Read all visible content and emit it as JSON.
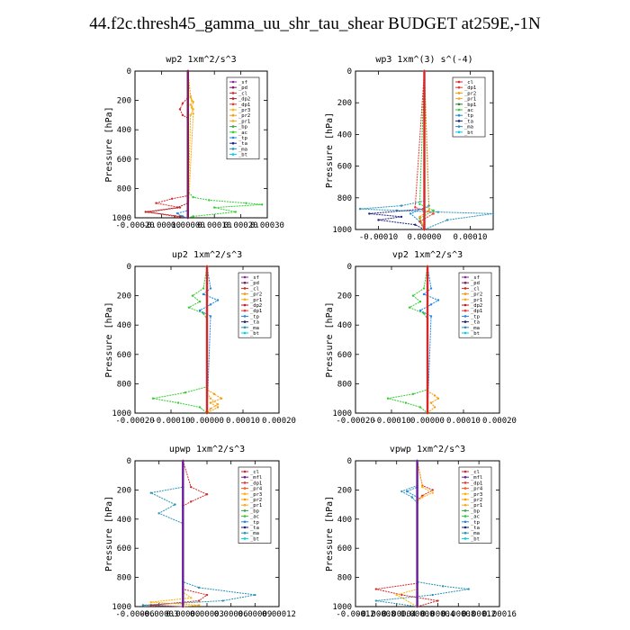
{
  "title": "44.f2c.thresh45_gamma_uu_shr_tau_shear  BUDGET at259E,-1N",
  "colors": {
    "sf": "#8e24aa",
    "pd": "#7b1f5e",
    "cl": "#d62728",
    "dp2": "#b22222",
    "dp1": "#e53935",
    "pr2": "#ff9800",
    "pr3": "#ffb300",
    "pr1": "#f9a825",
    "bp": "#43a047",
    "bp1": "#2e7d32",
    "ac": "#33cc33",
    "tp": "#1e88e5",
    "ta": "#1a237e",
    "ma": "#2a93b8",
    "bt": "#00cfe8",
    "mfl": "#6a1b9a",
    "pr4": "#ff5722"
  },
  "chart_data": [
    {
      "type": "line",
      "title": "wp2   1xm^2/s^3",
      "ylabel": "Pressure [hPa]",
      "ylim": [
        1000,
        0
      ],
      "xlim": [
        -0.0002,
        0.0003
      ],
      "xticks": [
        "-0.00020",
        "-0.00010",
        "0.00000",
        "0.00010",
        "0.00020",
        "0.00030"
      ],
      "yticks": [
        "0",
        "200",
        "400",
        "600",
        "800",
        "1000"
      ],
      "legend": [
        "_sf",
        "_pd",
        "_cl",
        "_dp2",
        "_dp1",
        "_pr3",
        "_pr2",
        "_pr1",
        "_bp",
        "_ac",
        "_tp",
        "_ta",
        "_ma",
        "_bt"
      ],
      "legend_keys": [
        "sf",
        "pd",
        "cl",
        "dp2",
        "dp1",
        "pr3",
        "pr2",
        "pr1",
        "bp",
        "ac",
        "tp",
        "ta",
        "ma",
        "bt"
      ],
      "series": [
        {
          "name": "_ac",
          "color_key": "ac",
          "x": [
            0,
            0,
            2e-05,
            8e-05,
            0.00022,
            0.00028,
            0.0001,
            0.00018,
            2e-05,
            0
          ],
          "y": [
            0,
            820,
            860,
            880,
            900,
            910,
            930,
            960,
            990,
            1000
          ]
        },
        {
          "name": "_cl",
          "color_key": "cl",
          "x": [
            0,
            0,
            -2e-05,
            -3e-05,
            -2e-05,
            0,
            0,
            -6e-05,
            -0.00012,
            -3e-05,
            -0.00015,
            -5e-05,
            0
          ],
          "y": [
            0,
            180,
            220,
            260,
            300,
            320,
            850,
            870,
            900,
            930,
            960,
            990,
            1000
          ]
        },
        {
          "name": "_dp2",
          "color_key": "dp2",
          "x": [
            0,
            0,
            -4e-05,
            -0.00016,
            -3e-05,
            0
          ],
          "y": [
            0,
            900,
            930,
            960,
            990,
            1000
          ]
        },
        {
          "name": "_pr3",
          "color_key": "pr3",
          "x": [
            0,
            1e-05,
            1.5e-05,
            1e-05,
            2e-05,
            1e-05,
            0
          ],
          "y": [
            0,
            170,
            200,
            230,
            260,
            300,
            1000
          ]
        },
        {
          "name": "_pr1",
          "color_key": "pr1",
          "x": [
            0,
            1e-05,
            2e-05,
            1.5e-05,
            2e-05,
            0
          ],
          "y": [
            0,
            180,
            210,
            250,
            290,
            1000
          ]
        },
        {
          "name": "_tp",
          "color_key": "tp",
          "x": [
            0,
            0,
            -4e-05,
            -2e-05,
            0
          ],
          "y": [
            0,
            950,
            970,
            990,
            1000
          ]
        },
        {
          "name": "_sf",
          "color_key": "sf",
          "x": [
            0,
            0
          ],
          "y": [
            0,
            1000
          ]
        },
        {
          "name": "_pd",
          "color_key": "pd",
          "x": [
            0,
            0
          ],
          "y": [
            0,
            1000
          ]
        }
      ]
    },
    {
      "type": "line",
      "title": "wp3   1xm^(3) s^(-4)",
      "ylabel": "Pressure [hPa]",
      "ylim": [
        1000,
        0
      ],
      "xlim": [
        -0.00015,
        0.00015
      ],
      "xticks": [
        "-0.00010",
        "0.00000",
        "0.00010"
      ],
      "yticks": [
        "0",
        "200",
        "400",
        "600",
        "800",
        "1000"
      ],
      "legend": [
        "_cl",
        "_dp1",
        "_pr2",
        "_pr1",
        "_bp1",
        "_ac",
        "_tp",
        "_ta",
        "_ma",
        "_bt"
      ],
      "legend_keys": [
        "cl",
        "dp1",
        "pr2",
        "pr1",
        "bp1",
        "ac",
        "tp",
        "ta",
        "ma",
        "bt"
      ],
      "series": [
        {
          "name": "_ma",
          "color_key": "ma",
          "x": [
            0,
            0,
            -5e-05,
            -0.00014,
            -6e-05,
            3e-05,
            0.00015,
            5e-05,
            0
          ],
          "y": [
            0,
            820,
            850,
            870,
            880,
            890,
            900,
            940,
            1000
          ]
        },
        {
          "name": "_ta",
          "color_key": "ta",
          "x": [
            0,
            0,
            -0.00012,
            -5e-05,
            -0.0001,
            -2e-05,
            0
          ],
          "y": [
            0,
            870,
            900,
            920,
            940,
            970,
            1000
          ]
        },
        {
          "name": "_tp",
          "color_key": "tp",
          "x": [
            0,
            1e-05,
            -3e-05,
            -1e-05,
            0
          ],
          "y": [
            0,
            850,
            900,
            950,
            1000
          ]
        },
        {
          "name": "_ac",
          "color_key": "ac",
          "x": [
            0,
            -1e-05,
            2e-05,
            -1e-05,
            0
          ],
          "y": [
            0,
            840,
            880,
            930,
            1000
          ]
        },
        {
          "name": "_pr2",
          "color_key": "pr2",
          "x": [
            0,
            1e-05,
            -1e-05,
            0
          ],
          "y": [
            0,
            880,
            920,
            1000
          ]
        },
        {
          "name": "_dp1",
          "color_key": "dp1",
          "x": [
            0,
            -2e-05,
            2e-05,
            -1e-05,
            0
          ],
          "y": [
            0,
            860,
            900,
            950,
            1000
          ]
        },
        {
          "name": "_cl",
          "color_key": "cl",
          "x": [
            0,
            0
          ],
          "y": [
            0,
            1000
          ]
        }
      ]
    },
    {
      "type": "line",
      "title": "up2   1xm^2/s^3",
      "ylabel": "Pressure [hPa]",
      "ylim": [
        1000,
        0
      ],
      "xlim": [
        -0.0002,
        0.0002
      ],
      "xticks": [
        "-0.00020",
        "-0.00010",
        "0.00000",
        "0.00010",
        "0.00020"
      ],
      "yticks": [
        "0",
        "200",
        "400",
        "600",
        "800",
        "1000"
      ],
      "legend": [
        "_sf",
        "_pd",
        "_cl",
        "_pr2",
        "_pr1",
        "_dp2",
        "_dp1",
        "_tp",
        "_ta",
        "_ma",
        "_bt"
      ],
      "legend_keys": [
        "sf",
        "pd",
        "cl",
        "pr2",
        "pr1",
        "dp2",
        "dp1",
        "tp",
        "ta",
        "ma",
        "bt"
      ],
      "series": [
        {
          "name": "_ac",
          "color_key": "ac",
          "x": [
            0,
            -1e-05,
            -4e-05,
            -2e-05,
            -5e-05,
            -1e-05,
            0,
            0,
            -6e-05,
            -0.00015,
            -8e-05,
            -2e-05,
            0
          ],
          "y": [
            0,
            150,
            200,
            240,
            280,
            320,
            360,
            820,
            860,
            900,
            930,
            960,
            1000
          ]
        },
        {
          "name": "_tp",
          "color_key": "tp",
          "x": [
            0,
            1e-05,
            -1e-05,
            3e-05,
            1e-05,
            -2e-05,
            1e-05,
            0
          ],
          "y": [
            0,
            150,
            190,
            230,
            260,
            300,
            340,
            1000
          ]
        },
        {
          "name": "_pr2",
          "color_key": "pr2",
          "x": [
            0,
            0,
            2e-05,
            4e-05,
            1e-05,
            3e-05,
            0
          ],
          "y": [
            0,
            840,
            870,
            900,
            930,
            960,
            1000
          ]
        },
        {
          "name": "_pr1",
          "color_key": "pr1",
          "x": [
            0,
            0,
            1e-05,
            3e-05,
            1e-05,
            0
          ],
          "y": [
            0,
            860,
            900,
            940,
            970,
            1000
          ]
        },
        {
          "name": "_cl",
          "color_key": "cl",
          "x": [
            0,
            0
          ],
          "y": [
            0,
            1000
          ]
        }
      ]
    },
    {
      "type": "line",
      "title": "vp2   1xm^2/s^3",
      "ylabel": "Pressure [hPa]",
      "ylim": [
        1000,
        0
      ],
      "xlim": [
        -0.0002,
        0.0002
      ],
      "xticks": [
        "-0.00020",
        "-0.00010",
        "0.00000",
        "0.00010",
        "0.00020"
      ],
      "yticks": [
        "0",
        "200",
        "400",
        "600",
        "800",
        "1000"
      ],
      "legend": [
        "_sf",
        "_pd",
        "_cl",
        "_pr2",
        "_pr1",
        "_dp2",
        "_dp1",
        "_tp",
        "_ta",
        "_ma",
        "_bt"
      ],
      "legend_keys": [
        "sf",
        "pd",
        "cl",
        "pr2",
        "pr1",
        "dp2",
        "dp1",
        "tp",
        "ta",
        "ma",
        "bt"
      ],
      "series": [
        {
          "name": "_ac",
          "color_key": "ac",
          "x": [
            0,
            -1e-05,
            -4e-05,
            -2e-05,
            -5e-05,
            -1e-05,
            0,
            0,
            -4e-05,
            -0.00011,
            -6e-05,
            -2e-05,
            0
          ],
          "y": [
            0,
            150,
            200,
            240,
            280,
            320,
            360,
            840,
            870,
            900,
            930,
            960,
            1000
          ]
        },
        {
          "name": "_tp",
          "color_key": "tp",
          "x": [
            0,
            1e-05,
            -1e-05,
            3e-05,
            1e-05,
            -2e-05,
            1e-05,
            0
          ],
          "y": [
            0,
            150,
            190,
            230,
            260,
            300,
            340,
            1000
          ]
        },
        {
          "name": "_pr2",
          "color_key": "pr2",
          "x": [
            0,
            0,
            2e-05,
            3e-05,
            1e-05,
            2e-05,
            0
          ],
          "y": [
            0,
            850,
            880,
            900,
            930,
            960,
            1000
          ]
        },
        {
          "name": "_cl",
          "color_key": "cl",
          "x": [
            0,
            0
          ],
          "y": [
            0,
            1000
          ]
        }
      ]
    },
    {
      "type": "line",
      "title": "upwp   1xm^2/s^3",
      "ylabel": "Pressure [hPa]",
      "ylim": [
        1000,
        0
      ],
      "xlim": [
        -6e-05,
        0.00012
      ],
      "xticks": [
        "-0.00006",
        "-0.00003",
        "0.00000",
        "0.00003",
        "0.00006",
        "0.00009",
        "0.00012"
      ],
      "yticks": [
        "0",
        "200",
        "400",
        "600",
        "800",
        "1000"
      ],
      "legend": [
        "_cl",
        "_mfl",
        "_dp1",
        "_pr4",
        "_pr3",
        "_pr2",
        "_pr1",
        "_bp",
        "_ac",
        "_tp",
        "_ta",
        "_ma",
        "_bt"
      ],
      "legend_keys": [
        "cl",
        "mfl",
        "dp1",
        "pr4",
        "pr3",
        "pr2",
        "pr1",
        "bp",
        "ac",
        "tp",
        "ta",
        "ma",
        "bt"
      ],
      "series": [
        {
          "name": "_ma",
          "color_key": "ma",
          "x": [
            0,
            0,
            -4e-05,
            -1e-05,
            -3e-05,
            0,
            0,
            2e-05,
            9e-05,
            5e-05,
            -5e-05,
            0
          ],
          "y": [
            0,
            180,
            220,
            300,
            360,
            430,
            830,
            870,
            920,
            960,
            990,
            1000
          ]
        },
        {
          "name": "_cl",
          "color_key": "cl",
          "x": [
            0,
            1e-05,
            3e-05,
            1e-05,
            0,
            0,
            3e-05,
            2e-05,
            -4e-05,
            0
          ],
          "y": [
            0,
            180,
            230,
            280,
            310,
            880,
            920,
            960,
            990,
            1000
          ]
        },
        {
          "name": "_pr3",
          "color_key": "pr3",
          "x": [
            0,
            0,
            1e-05,
            -4e-05,
            2e-05,
            0
          ],
          "y": [
            0,
            900,
            940,
            970,
            990,
            1000
          ]
        },
        {
          "name": "_mfl",
          "color_key": "mfl",
          "x": [
            0,
            0
          ],
          "y": [
            0,
            1000
          ]
        }
      ]
    },
    {
      "type": "line",
      "title": "vpwp   1xm^2/s^3",
      "ylabel": "Pressure [hPa]",
      "ylim": [
        1000,
        0
      ],
      "xlim": [
        -0.00012,
        0.00016
      ],
      "xticks": [
        "-0.00012",
        "-0.00008",
        "-0.00004",
        "0.00000",
        "0.00004",
        "0.00008",
        "0.00012",
        "0.00016"
      ],
      "yticks": [
        "0",
        "200",
        "400",
        "600",
        "800",
        "1000"
      ],
      "legend": [
        "_cl",
        "_mfl",
        "_dp1",
        "_pr4",
        "_pr3",
        "_pr2",
        "_pr1",
        "_bp",
        "_ac",
        "_tp",
        "_ta",
        "_ma",
        "_bt"
      ],
      "legend_keys": [
        "cl",
        "mfl",
        "dp1",
        "pr4",
        "pr3",
        "pr2",
        "pr1",
        "bp",
        "ac",
        "tp",
        "ta",
        "ma",
        "bt"
      ],
      "series": [
        {
          "name": "_ma",
          "color_key": "ma",
          "x": [
            0,
            0,
            -3e-05,
            -1e-05,
            0,
            0,
            5e-05,
            0.0001,
            3e-05,
            -8e-05,
            0
          ],
          "y": [
            0,
            170,
            210,
            250,
            290,
            830,
            860,
            880,
            920,
            960,
            1000
          ]
        },
        {
          "name": "_cl",
          "color_key": "cl",
          "x": [
            0,
            1e-05,
            3e-05,
            1e-05,
            0,
            0,
            -8e-05,
            -3e-05,
            4e-05,
            0
          ],
          "y": [
            0,
            170,
            200,
            240,
            270,
            840,
            880,
            920,
            960,
            1000
          ]
        },
        {
          "name": "_pr3",
          "color_key": "pr3",
          "x": [
            0,
            1e-05,
            3e-05,
            1e-05,
            0,
            0,
            -4e-05,
            0
          ],
          "y": [
            0,
            180,
            220,
            250,
            280,
            880,
            920,
            1000
          ]
        },
        {
          "name": "_tp",
          "color_key": "tp",
          "x": [
            0,
            0,
            -2e-05,
            0
          ],
          "y": [
            0,
            180,
            210,
            250
          ]
        },
        {
          "name": "_mfl",
          "color_key": "mfl",
          "x": [
            0,
            0
          ],
          "y": [
            0,
            1000
          ]
        }
      ]
    }
  ]
}
